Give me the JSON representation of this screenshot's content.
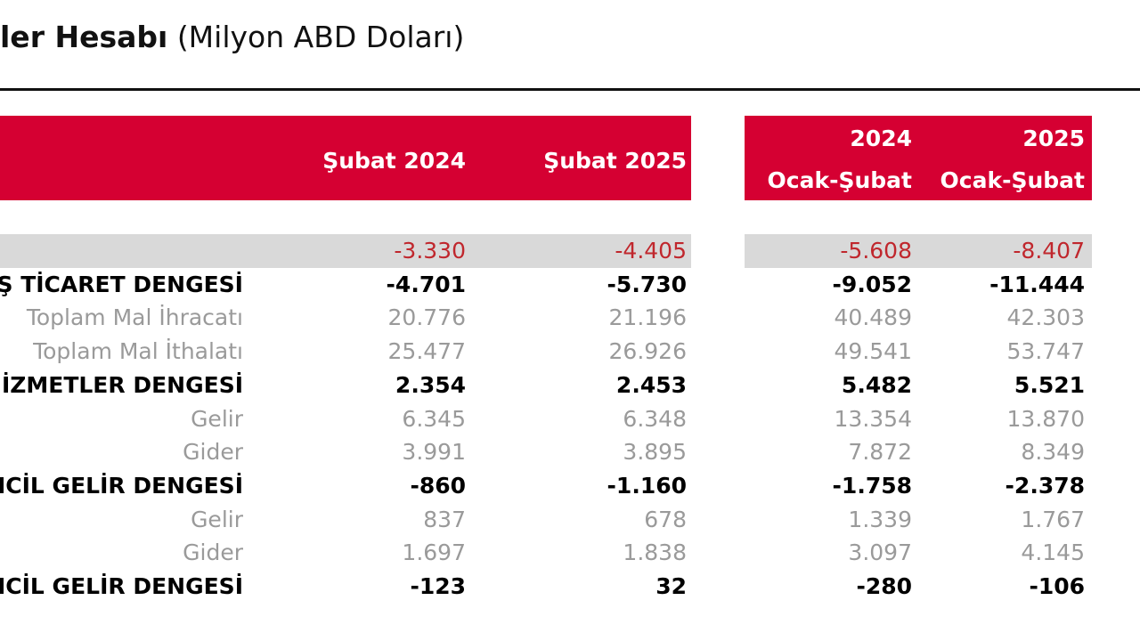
{
  "header": {
    "title_bold": "ler Hesabı",
    "title_rest": "(Milyon ABD Doları)"
  },
  "table": {
    "columns": [
      {
        "lines": [
          "Şubat 2024"
        ]
      },
      {
        "lines": [
          "Şubat 2025"
        ]
      },
      {
        "lines": [
          "2024",
          "Ocak-Şubat"
        ]
      },
      {
        "lines": [
          "2025",
          "Ocak-Şubat"
        ]
      }
    ],
    "rows": [
      {
        "style": "highlight",
        "cells": [
          "-3.330",
          "-4.405",
          "-5.608",
          "-8.407"
        ]
      },
      {
        "style": "bold",
        "label": "Ş TİCARET DENGESİ",
        "cells": [
          "-4.701",
          "-5.730",
          "-9.052",
          "-11.444"
        ]
      },
      {
        "style": "sub",
        "label": "Toplam Mal İhracatı",
        "cells": [
          "20.776",
          "21.196",
          "40.489",
          "42.303"
        ]
      },
      {
        "style": "sub",
        "label": "Toplam Mal İthalatı",
        "cells": [
          "25.477",
          "26.926",
          "49.541",
          "53.747"
        ]
      },
      {
        "style": "bold",
        "label": "İZMETLER DENGESİ",
        "cells": [
          "2.354",
          "2.453",
          "5.482",
          "5.521"
        ]
      },
      {
        "style": "sub",
        "label": "Gelir",
        "cells": [
          "6.345",
          "6.348",
          "13.354",
          "13.870"
        ]
      },
      {
        "style": "sub",
        "label": "Gider",
        "cells": [
          "3.991",
          "3.895",
          "7.872",
          "8.349"
        ]
      },
      {
        "style": "bold",
        "label": "NCİL GELİR DENGESİ",
        "cells": [
          "-860",
          "-1.160",
          "-1.758",
          "-2.378"
        ]
      },
      {
        "style": "sub",
        "label": "Gelir",
        "cells": [
          "837",
          "678",
          "1.339",
          "1.767"
        ]
      },
      {
        "style": "sub",
        "label": "Gider",
        "cells": [
          "1.697",
          "1.838",
          "3.097",
          "4.145"
        ]
      },
      {
        "style": "bold",
        "label": "NCİL GELİR DENGESİ",
        "cells": [
          "-123",
          "32",
          "-280",
          "-106"
        ]
      }
    ]
  }
}
